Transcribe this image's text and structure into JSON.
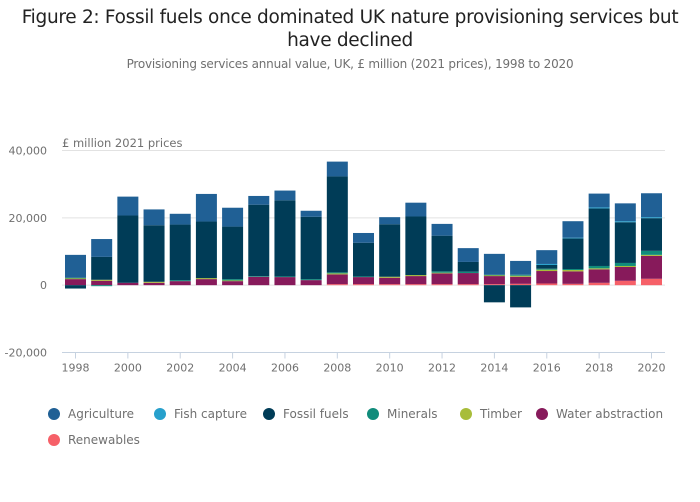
{
  "header": {
    "title_line1": "Figure 2: Fossil fuels once dominated UK nature provisioning services but",
    "title_line2": "have declined",
    "subtitle": "Provisioning services annual value, UK, £ million (2021 prices), 1998 to 2020"
  },
  "chart_data": {
    "type": "bar",
    "stacked": true,
    "title": "Figure 2: Fossil fuels once dominated UK nature provisioning services but have declined",
    "subtitle": "Provisioning services annual value, UK, £ million (2021 prices), 1998 to 2020",
    "xlabel": "",
    "ylabel": "£ million 2021 prices",
    "ylim": [
      -20000,
      40000
    ],
    "yticks": [
      -20000,
      0,
      20000,
      40000
    ],
    "ytick_labels": [
      "-20,000",
      "0",
      "20,000",
      "40,000"
    ],
    "xtick_labels": [
      "1998",
      "2000",
      "2002",
      "2004",
      "2006",
      "2008",
      "2010",
      "2012",
      "2014",
      "2016",
      "2018",
      "2020"
    ],
    "grid": true,
    "legend_position": "bottom",
    "categories": [
      "1998",
      "1999",
      "2000",
      "2001",
      "2002",
      "2003",
      "2004",
      "2005",
      "2006",
      "2007",
      "2008",
      "2009",
      "2010",
      "2011",
      "2012",
      "2013",
      "2014",
      "2015",
      "2016",
      "2017",
      "2018",
      "2019",
      "2020"
    ],
    "series": [
      {
        "name": "Renewables",
        "color": "#f66068",
        "values": [
          0,
          0,
          0,
          0,
          0,
          0,
          0,
          0,
          0,
          0,
          300,
          300,
          300,
          300,
          300,
          300,
          300,
          400,
          500,
          400,
          700,
          1300,
          1900
        ]
      },
      {
        "name": "Water abstraction",
        "color": "#871a5b",
        "values": [
          1800,
          1300,
          700,
          700,
          1200,
          1800,
          1200,
          2500,
          2400,
          1500,
          2900,
          2100,
          1900,
          2400,
          3200,
          3300,
          2400,
          2100,
          3700,
          3700,
          4000,
          4100,
          6800
        ]
      },
      {
        "name": "Timber",
        "color": "#a8bd3a",
        "values": [
          300,
          300,
          0,
          300,
          0,
          300,
          200,
          0,
          0,
          0,
          300,
          0,
          300,
          300,
          200,
          0,
          300,
          300,
          400,
          400,
          300,
          300,
          300
        ]
      },
      {
        "name": "Minerals",
        "color": "#118c7b",
        "values": [
          100,
          -300,
          0,
          0,
          300,
          0,
          400,
          200,
          200,
          300,
          300,
          200,
          0,
          0,
          400,
          400,
          100,
          300,
          300,
          300,
          700,
          900,
          1200
        ]
      },
      {
        "name": "Fossil fuels",
        "color": "#003c57",
        "values": [
          -1000,
          6800,
          20000,
          16800,
          16500,
          16800,
          15600,
          21200,
          22600,
          18500,
          28500,
          10000,
          15600,
          17400,
          10600,
          2900,
          -5100,
          -6600,
          1100,
          9100,
          17100,
          12100,
          9700
        ]
      },
      {
        "name": "Fish capture",
        "color": "#27a0cc",
        "values": [
          0,
          0,
          0,
          0,
          0,
          0,
          0,
          0,
          0,
          0,
          0,
          0,
          0,
          0,
          0,
          0,
          0,
          0,
          300,
          200,
          300,
          300,
          300
        ]
      },
      {
        "name": "Agriculture",
        "color": "#206095",
        "values": [
          6800,
          5300,
          5600,
          4700,
          3200,
          8200,
          5600,
          2600,
          2900,
          1800,
          4400,
          2900,
          2100,
          4100,
          3500,
          4100,
          6200,
          4100,
          4100,
          4900,
          4100,
          5300,
          7100
        ]
      }
    ]
  },
  "legend": {
    "items": [
      {
        "label": "Agriculture",
        "color": "#206095"
      },
      {
        "label": "Fish capture",
        "color": "#27a0cc"
      },
      {
        "label": "Fossil fuels",
        "color": "#003c57"
      },
      {
        "label": "Minerals",
        "color": "#118c7b"
      },
      {
        "label": "Timber",
        "color": "#a8bd3a"
      },
      {
        "label": "Water abstraction",
        "color": "#871a5b"
      },
      {
        "label": "Renewables",
        "color": "#f66068"
      }
    ]
  }
}
